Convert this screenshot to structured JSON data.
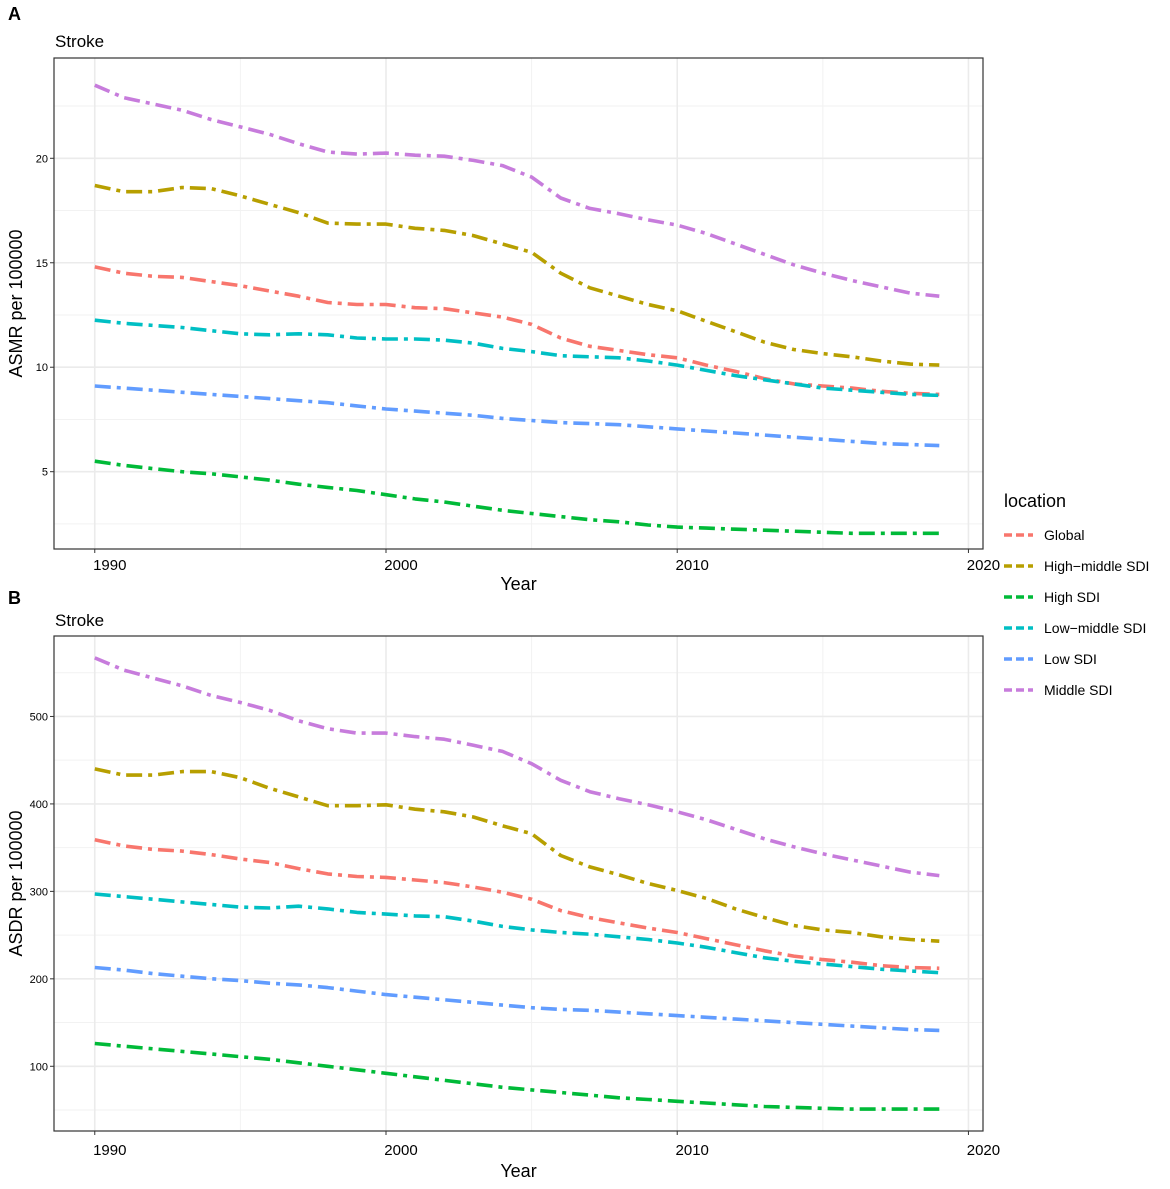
{
  "chart_data": [
    {
      "type": "line",
      "panel_label": "A",
      "title": "Stroke",
      "xlabel": "Year",
      "ylabel": "ASMR per 100000",
      "xlim": [
        1988.6,
        2020.5
      ],
      "ylim": [
        1.3,
        24.8
      ],
      "x_ticks": [
        1990,
        2000,
        2010,
        2020
      ],
      "y_ticks": [
        5,
        10,
        15,
        20
      ],
      "grid": true,
      "x": [
        1990,
        1991,
        1992,
        1993,
        1994,
        1995,
        1996,
        1997,
        1998,
        1999,
        2000,
        2001,
        2002,
        2003,
        2004,
        2005,
        2006,
        2007,
        2008,
        2009,
        2010,
        2011,
        2012,
        2013,
        2014,
        2015,
        2016,
        2017,
        2018,
        2019
      ],
      "series": [
        {
          "name": "Global",
          "values": [
            14.8,
            14.5,
            14.35,
            14.3,
            14.1,
            13.9,
            13.65,
            13.4,
            13.1,
            13.0,
            13.0,
            12.85,
            12.8,
            12.6,
            12.4,
            12.05,
            11.4,
            11.0,
            10.8,
            10.6,
            10.45,
            10.1,
            9.8,
            9.45,
            9.2,
            9.1,
            9.0,
            8.85,
            8.75,
            8.7
          ]
        },
        {
          "name": "High−middle SDI",
          "values": [
            18.7,
            18.4,
            18.4,
            18.6,
            18.55,
            18.2,
            17.8,
            17.4,
            16.9,
            16.85,
            16.85,
            16.65,
            16.55,
            16.3,
            15.9,
            15.5,
            14.5,
            13.8,
            13.4,
            13.0,
            12.7,
            12.2,
            11.7,
            11.2,
            10.85,
            10.65,
            10.5,
            10.3,
            10.15,
            10.1
          ]
        },
        {
          "name": "High SDI",
          "values": [
            5.5,
            5.3,
            5.15,
            5.0,
            4.9,
            4.75,
            4.6,
            4.4,
            4.25,
            4.1,
            3.9,
            3.7,
            3.55,
            3.35,
            3.15,
            3.0,
            2.85,
            2.7,
            2.6,
            2.45,
            2.35,
            2.3,
            2.25,
            2.2,
            2.15,
            2.1,
            2.05,
            2.05,
            2.05,
            2.05
          ]
        },
        {
          "name": "Low−middle SDI",
          "values": [
            12.25,
            12.1,
            12.0,
            11.9,
            11.75,
            11.6,
            11.55,
            11.6,
            11.55,
            11.4,
            11.35,
            11.35,
            11.3,
            11.15,
            10.9,
            10.75,
            10.55,
            10.5,
            10.45,
            10.3,
            10.1,
            9.85,
            9.6,
            9.4,
            9.2,
            9.0,
            8.9,
            8.8,
            8.7,
            8.65
          ]
        },
        {
          "name": "Low SDI",
          "values": [
            9.1,
            9.0,
            8.9,
            8.8,
            8.7,
            8.6,
            8.5,
            8.4,
            8.3,
            8.15,
            8.0,
            7.9,
            7.8,
            7.7,
            7.55,
            7.45,
            7.35,
            7.3,
            7.25,
            7.15,
            7.05,
            6.95,
            6.85,
            6.75,
            6.65,
            6.55,
            6.45,
            6.35,
            6.3,
            6.25
          ]
        },
        {
          "name": "Middle SDI",
          "values": [
            23.5,
            22.9,
            22.6,
            22.3,
            21.85,
            21.5,
            21.15,
            20.7,
            20.3,
            20.2,
            20.25,
            20.15,
            20.1,
            19.9,
            19.65,
            19.1,
            18.1,
            17.6,
            17.35,
            17.05,
            16.8,
            16.4,
            15.9,
            15.4,
            14.9,
            14.5,
            14.15,
            13.85,
            13.55,
            13.4
          ]
        }
      ]
    },
    {
      "type": "line",
      "panel_label": "B",
      "title": "Stroke",
      "xlabel": "Year",
      "ylabel": "ASDR per 100000",
      "xlim": [
        1988.6,
        2020.5
      ],
      "ylim": [
        26,
        592
      ],
      "x_ticks": [
        1990,
        2000,
        2010,
        2020
      ],
      "y_ticks": [
        100,
        200,
        300,
        400,
        500
      ],
      "grid": true,
      "x": [
        1990,
        1991,
        1992,
        1993,
        1994,
        1995,
        1996,
        1997,
        1998,
        1999,
        2000,
        2001,
        2002,
        2003,
        2004,
        2005,
        2006,
        2007,
        2008,
        2009,
        2010,
        2011,
        2012,
        2013,
        2014,
        2015,
        2016,
        2017,
        2018,
        2019
      ],
      "series": [
        {
          "name": "Global",
          "values": [
            359,
            352,
            348,
            346,
            342,
            337,
            333,
            326,
            320,
            317,
            316,
            313,
            310,
            305,
            299,
            291,
            278,
            270,
            264,
            258,
            253,
            246,
            239,
            232,
            226,
            222,
            219,
            215,
            213,
            212
          ]
        },
        {
          "name": "High−middle SDI",
          "values": [
            440,
            433,
            433,
            437,
            437,
            430,
            418,
            408,
            398,
            398,
            399,
            394,
            391,
            385,
            375,
            366,
            341,
            328,
            319,
            309,
            301,
            292,
            280,
            270,
            261,
            256,
            253,
            248,
            245,
            243
          ]
        },
        {
          "name": "High SDI",
          "values": [
            126,
            123,
            120,
            117,
            114,
            111,
            108,
            104,
            100,
            96,
            92,
            88,
            84,
            80,
            76,
            73,
            70,
            67,
            64,
            62,
            60,
            58,
            56,
            54,
            53,
            52,
            51,
            51,
            51,
            51
          ]
        },
        {
          "name": "Low−middle SDI",
          "values": [
            297,
            294,
            291,
            288,
            285,
            282,
            281,
            283,
            280,
            276,
            274,
            272,
            271,
            266,
            260,
            256,
            253,
            251,
            248,
            245,
            241,
            236,
            230,
            224,
            220,
            217,
            214,
            211,
            209,
            207
          ]
        },
        {
          "name": "Low SDI",
          "values": [
            213,
            210,
            206,
            203,
            200,
            198,
            195,
            193,
            190,
            186,
            182,
            179,
            176,
            173,
            170,
            167,
            165,
            164,
            162,
            160,
            158,
            156,
            154,
            152,
            150,
            148,
            146,
            144,
            142,
            141
          ]
        },
        {
          "name": "Middle SDI",
          "values": [
            567,
            553,
            544,
            535,
            524,
            516,
            507,
            495,
            486,
            481,
            481,
            477,
            474,
            467,
            460,
            446,
            427,
            414,
            406,
            399,
            391,
            382,
            371,
            360,
            351,
            343,
            336,
            329,
            322,
            318
          ]
        }
      ]
    }
  ],
  "legend": {
    "title": "location",
    "entries": [
      {
        "label": "Global",
        "color": "#F8766D"
      },
      {
        "label": "High−middle SDI",
        "color": "#B79F00"
      },
      {
        "label": "High SDI",
        "color": "#00BA38"
      },
      {
        "label": "Low−middle SDI",
        "color": "#00BFC4"
      },
      {
        "label": "Low SDI",
        "color": "#619CFF"
      },
      {
        "label": "Middle SDI",
        "color": "#C77CDC"
      }
    ]
  }
}
